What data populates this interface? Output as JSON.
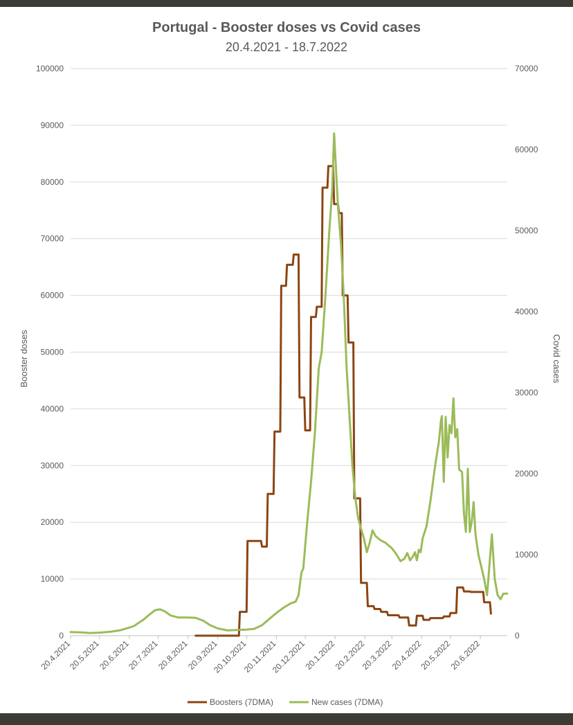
{
  "chart_data": {
    "type": "line",
    "title": "Portugal - Booster doses vs Covid cases",
    "subtitle": "20.4.2021 - 18.7.2022",
    "ylabel": "Booster doses",
    "y2label": "Covid cases",
    "xlabel": "",
    "ylim": [
      0,
      100000
    ],
    "y2lim": [
      0,
      70000
    ],
    "yticks": [
      0,
      10000,
      20000,
      30000,
      40000,
      50000,
      60000,
      70000,
      80000,
      90000,
      100000
    ],
    "y2ticks": [
      0,
      10000,
      20000,
      30000,
      40000,
      50000,
      60000,
      70000
    ],
    "xlim": [
      "2021-04-20",
      "2022-07-18"
    ],
    "xticks": [
      "2021-04-20",
      "2021-05-20",
      "2021-06-20",
      "2021-07-20",
      "2021-08-20",
      "2021-09-20",
      "2021-10-20",
      "2021-11-20",
      "2021-12-20",
      "2022-01-20",
      "2022-02-20",
      "2022-03-20",
      "2022-04-20",
      "2022-05-20",
      "2022-06-20"
    ],
    "xtick_labels": [
      "20.4.2021",
      "20.5.2021",
      "20.6.2021",
      "20.7.2021",
      "20.8.2021",
      "20.9.2021",
      "20.10.2021",
      "20.11.2021",
      "20.12.2021",
      "20.1.2022",
      "20.2.2022",
      "20.3.2022",
      "20.4.2022",
      "20.5.2022",
      "20.6.2022"
    ],
    "grid": true,
    "legend": "bottom",
    "series": [
      {
        "name": "Boosters (7DMA)",
        "axis": "left",
        "color": "#8b4513",
        "step": true,
        "points": [
          [
            "2021-08-28",
            0
          ],
          [
            "2021-10-12",
            0
          ],
          [
            "2021-10-13",
            4200
          ],
          [
            "2021-10-20",
            4200
          ],
          [
            "2021-10-21",
            16700
          ],
          [
            "2021-11-04",
            16700
          ],
          [
            "2021-11-05",
            15700
          ],
          [
            "2021-11-10",
            15700
          ],
          [
            "2021-11-11",
            25000
          ],
          [
            "2021-11-17",
            25000
          ],
          [
            "2021-11-18",
            36000
          ],
          [
            "2021-11-24",
            36000
          ],
          [
            "2021-11-25",
            61700
          ],
          [
            "2021-11-30",
            61700
          ],
          [
            "2021-12-01",
            65400
          ],
          [
            "2021-12-07",
            65400
          ],
          [
            "2021-12-08",
            67200
          ],
          [
            "2021-12-13",
            67200
          ],
          [
            "2021-12-14",
            42000
          ],
          [
            "2021-12-19",
            42000
          ],
          [
            "2021-12-20",
            36200
          ],
          [
            "2021-12-25",
            36200
          ],
          [
            "2021-12-26",
            56200
          ],
          [
            "2021-12-31",
            56200
          ],
          [
            "2022-01-01",
            58000
          ],
          [
            "2022-01-06",
            58000
          ],
          [
            "2022-01-07",
            79000
          ],
          [
            "2022-01-12",
            79000
          ],
          [
            "2022-01-13",
            82800
          ],
          [
            "2022-01-18",
            82800
          ],
          [
            "2022-01-19",
            76100
          ],
          [
            "2022-01-23",
            76100
          ],
          [
            "2022-01-24",
            74500
          ],
          [
            "2022-01-27",
            74500
          ],
          [
            "2022-01-28",
            60000
          ],
          [
            "2022-02-02",
            60000
          ],
          [
            "2022-02-03",
            51700
          ],
          [
            "2022-02-08",
            51700
          ],
          [
            "2022-02-09",
            24200
          ],
          [
            "2022-02-15",
            24200
          ],
          [
            "2022-02-16",
            9300
          ],
          [
            "2022-02-22",
            9300
          ],
          [
            "2022-02-23",
            5200
          ],
          [
            "2022-03-01",
            5200
          ],
          [
            "2022-03-02",
            4700
          ],
          [
            "2022-03-08",
            4700
          ],
          [
            "2022-03-09",
            4200
          ],
          [
            "2022-03-15",
            4200
          ],
          [
            "2022-03-16",
            3600
          ],
          [
            "2022-03-27",
            3600
          ],
          [
            "2022-03-28",
            3200
          ],
          [
            "2022-04-06",
            3200
          ],
          [
            "2022-04-07",
            1800
          ],
          [
            "2022-04-14",
            1800
          ],
          [
            "2022-04-15",
            3500
          ],
          [
            "2022-04-21",
            3500
          ],
          [
            "2022-04-22",
            2800
          ],
          [
            "2022-04-28",
            2800
          ],
          [
            "2022-04-29",
            3100
          ],
          [
            "2022-05-12",
            3100
          ],
          [
            "2022-05-13",
            3400
          ],
          [
            "2022-05-19",
            3400
          ],
          [
            "2022-05-20",
            4000
          ],
          [
            "2022-05-26",
            4000
          ],
          [
            "2022-05-27",
            8500
          ],
          [
            "2022-06-02",
            8500
          ],
          [
            "2022-06-03",
            7800
          ],
          [
            "2022-06-09",
            7800
          ],
          [
            "2022-06-10",
            7700
          ],
          [
            "2022-06-23",
            7700
          ],
          [
            "2022-06-24",
            5900
          ],
          [
            "2022-06-30",
            5900
          ],
          [
            "2022-07-01",
            3900
          ]
        ]
      },
      {
        "name": "New cases (7DMA)",
        "axis": "right",
        "color": "#9bbb59",
        "step": false,
        "points": [
          [
            "2021-04-20",
            450
          ],
          [
            "2021-05-01",
            400
          ],
          [
            "2021-05-10",
            330
          ],
          [
            "2021-05-20",
            380
          ],
          [
            "2021-05-31",
            480
          ],
          [
            "2021-06-10",
            650
          ],
          [
            "2021-06-20",
            1000
          ],
          [
            "2021-06-25",
            1200
          ],
          [
            "2021-07-05",
            2000
          ],
          [
            "2021-07-12",
            2700
          ],
          [
            "2021-07-17",
            3150
          ],
          [
            "2021-07-22",
            3250
          ],
          [
            "2021-07-27",
            3000
          ],
          [
            "2021-08-02",
            2500
          ],
          [
            "2021-08-10",
            2250
          ],
          [
            "2021-08-20",
            2250
          ],
          [
            "2021-08-28",
            2200
          ],
          [
            "2021-09-05",
            1850
          ],
          [
            "2021-09-12",
            1300
          ],
          [
            "2021-09-20",
            900
          ],
          [
            "2021-09-30",
            650
          ],
          [
            "2021-10-10",
            700
          ],
          [
            "2021-10-20",
            750
          ],
          [
            "2021-10-28",
            850
          ],
          [
            "2021-11-05",
            1300
          ],
          [
            "2021-11-12",
            2000
          ],
          [
            "2021-11-20",
            2800
          ],
          [
            "2021-11-28",
            3500
          ],
          [
            "2021-12-05",
            4000
          ],
          [
            "2021-12-10",
            4200
          ],
          [
            "2021-12-13",
            5000
          ],
          [
            "2021-12-16",
            7800
          ],
          [
            "2021-12-18",
            8300
          ],
          [
            "2021-12-22",
            14000
          ],
          [
            "2021-12-26",
            19000
          ],
          [
            "2021-12-30",
            25000
          ],
          [
            "2022-01-03",
            33000
          ],
          [
            "2022-01-06",
            35000
          ],
          [
            "2022-01-10",
            42000
          ],
          [
            "2022-01-14",
            50000
          ],
          [
            "2022-01-17",
            55000
          ],
          [
            "2022-01-19",
            62000
          ],
          [
            "2022-01-21",
            57500
          ],
          [
            "2022-01-23",
            53000
          ],
          [
            "2022-01-26",
            48500
          ],
          [
            "2022-01-29",
            42000
          ],
          [
            "2022-02-01",
            33000
          ],
          [
            "2022-02-04",
            27000
          ],
          [
            "2022-02-07",
            21000
          ],
          [
            "2022-02-10",
            17000
          ],
          [
            "2022-02-13",
            14500
          ],
          [
            "2022-02-16",
            13200
          ],
          [
            "2022-02-19",
            12000
          ],
          [
            "2022-02-22",
            10300
          ],
          [
            "2022-02-25",
            11500
          ],
          [
            "2022-02-28",
            13000
          ],
          [
            "2022-03-03",
            12300
          ],
          [
            "2022-03-08",
            11800
          ],
          [
            "2022-03-13",
            11500
          ],
          [
            "2022-03-20",
            10800
          ],
          [
            "2022-03-25",
            10000
          ],
          [
            "2022-03-29",
            9200
          ],
          [
            "2022-04-02",
            9500
          ],
          [
            "2022-04-05",
            10200
          ],
          [
            "2022-04-08",
            9300
          ],
          [
            "2022-04-11",
            9800
          ],
          [
            "2022-04-13",
            10300
          ],
          [
            "2022-04-15",
            9300
          ],
          [
            "2022-04-17",
            10600
          ],
          [
            "2022-04-19",
            10300
          ],
          [
            "2022-04-21",
            12000
          ],
          [
            "2022-04-25",
            13500
          ],
          [
            "2022-04-29",
            16500
          ],
          [
            "2022-05-04",
            21000
          ],
          [
            "2022-05-08",
            24000
          ],
          [
            "2022-05-10",
            26500
          ],
          [
            "2022-05-11",
            27100
          ],
          [
            "2022-05-13",
            19000
          ],
          [
            "2022-05-15",
            27000
          ],
          [
            "2022-05-17",
            22000
          ],
          [
            "2022-05-19",
            26000
          ],
          [
            "2022-05-21",
            25000
          ],
          [
            "2022-05-23",
            29300
          ],
          [
            "2022-05-25",
            24500
          ],
          [
            "2022-05-27",
            25500
          ],
          [
            "2022-05-29",
            20500
          ],
          [
            "2022-06-01",
            20200
          ],
          [
            "2022-06-03",
            15000
          ],
          [
            "2022-06-05",
            12800
          ],
          [
            "2022-06-07",
            20600
          ],
          [
            "2022-06-09",
            12800
          ],
          [
            "2022-06-11",
            14000
          ],
          [
            "2022-06-13",
            16500
          ],
          [
            "2022-06-15",
            12500
          ],
          [
            "2022-06-18",
            10000
          ],
          [
            "2022-06-21",
            8500
          ],
          [
            "2022-06-24",
            7000
          ],
          [
            "2022-06-27",
            5000
          ],
          [
            "2022-06-30",
            9500
          ],
          [
            "2022-07-02",
            12500
          ],
          [
            "2022-07-05",
            7000
          ],
          [
            "2022-07-08",
            5000
          ],
          [
            "2022-07-11",
            4500
          ],
          [
            "2022-07-14",
            5200
          ],
          [
            "2022-07-18",
            5200
          ]
        ]
      }
    ]
  }
}
